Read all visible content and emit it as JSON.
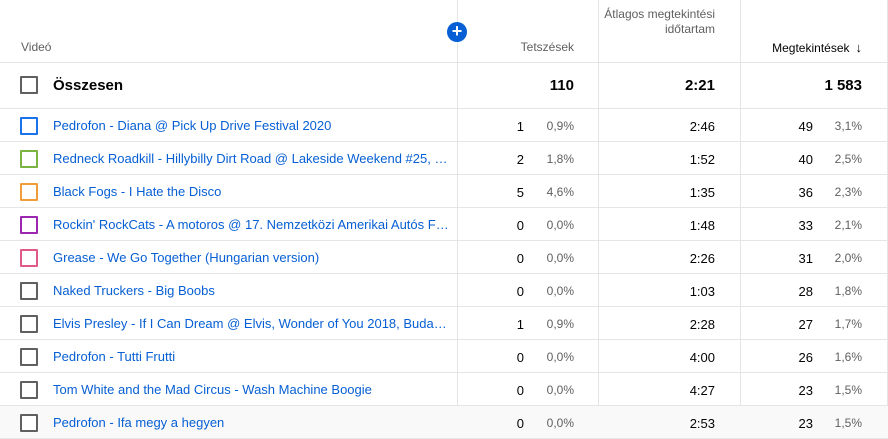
{
  "header": {
    "video": "Videó",
    "likes": "Tetszések",
    "avg_view_duration": "Átlagos megtekintési időtartam",
    "views": "Megtekintések",
    "sort_arrow": "↓",
    "add_metric_icon": "+"
  },
  "total": {
    "label": "Összesen",
    "likes": "110",
    "avg_view_duration": "2:21",
    "views": "1 583"
  },
  "rows": [
    {
      "title": "Pedrofon - Diana @ Pick Up Drive Festival 2020",
      "color": "#1a73e8",
      "likes": "1",
      "likes_pct": "0,9%",
      "avg": "2:46",
      "views": "49",
      "views_pct": "3,1%"
    },
    {
      "title": "Redneck Roadkill - Hillybilly Dirt Road @ Lakeside Weekend #25, 20…",
      "color": "#7cb342",
      "likes": "2",
      "likes_pct": "1,8%",
      "avg": "1:52",
      "views": "40",
      "views_pct": "2,5%"
    },
    {
      "title": "Black Fogs - I Hate the Disco",
      "color": "#f29c38",
      "likes": "5",
      "likes_pct": "4,6%",
      "avg": "1:35",
      "views": "36",
      "views_pct": "2,3%"
    },
    {
      "title": "Rockin' RockCats - A motoros @ 17. Nemzetközi Amerikai Autós Fe…",
      "color": "#9c27b0",
      "likes": "0",
      "likes_pct": "0,0%",
      "avg": "1:48",
      "views": "33",
      "views_pct": "2,1%"
    },
    {
      "title": "Grease - We Go Together (Hungarian version)",
      "color": "#e05a87",
      "likes": "0",
      "likes_pct": "0,0%",
      "avg": "2:26",
      "views": "31",
      "views_pct": "2,0%"
    },
    {
      "title": "Naked Truckers - Big Boobs",
      "color": "#606060",
      "likes": "0",
      "likes_pct": "0,0%",
      "avg": "1:03",
      "views": "28",
      "views_pct": "1,8%"
    },
    {
      "title": "Elvis Presley - If I Can Dream @ Elvis, Wonder of You 2018, Budapest",
      "color": "#606060",
      "likes": "1",
      "likes_pct": "0,9%",
      "avg": "2:28",
      "views": "27",
      "views_pct": "1,7%"
    },
    {
      "title": "Pedrofon - Tutti Frutti",
      "color": "#606060",
      "likes": "0",
      "likes_pct": "0,0%",
      "avg": "4:00",
      "views": "26",
      "views_pct": "1,6%"
    },
    {
      "title": "Tom White and the Mad Circus - Wash Machine Boogie",
      "color": "#606060",
      "likes": "0",
      "likes_pct": "0,0%",
      "avg": "4:27",
      "views": "23",
      "views_pct": "1,5%"
    },
    {
      "title": "Pedrofon - Ifa megy a hegyen",
      "color": "#606060",
      "likes": "0",
      "likes_pct": "0,0%",
      "avg": "2:53",
      "views": "23",
      "views_pct": "1,5%"
    }
  ]
}
